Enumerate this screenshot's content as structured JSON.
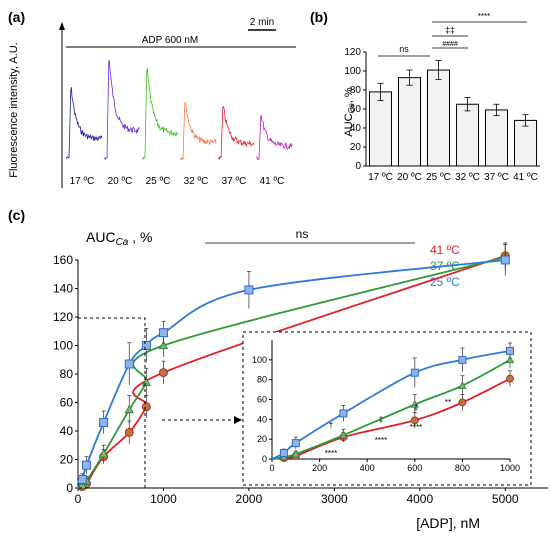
{
  "panels": {
    "a": {
      "label": "(a)",
      "treatment": "ADP 600 nM",
      "scale_bar": "2 min",
      "ylabel": "Fluorescence  intensity, A.U.",
      "traces": [
        {
          "temp": "17 ºC",
          "color": "#20209a",
          "peak": 0.62
        },
        {
          "temp": "20 ºC",
          "color": "#6a2ad8",
          "peak": 0.88
        },
        {
          "temp": "25 ºC",
          "color": "#42c01e",
          "peak": 0.8
        },
        {
          "temp": "32 ºC",
          "color": "#f47a52",
          "peak": 0.5
        },
        {
          "temp": "37 ºC",
          "color": "#e21e26",
          "peak": 0.46
        },
        {
          "temp": "41 ºC",
          "color": "#c020c0",
          "peak": 0.38
        }
      ]
    },
    "b": {
      "label": "(b)",
      "ylabel_main": "AUC",
      "ylabel_sub": "Ca",
      "ylabel_unit": ", %",
      "sig": {
        "ns": "ns",
        "double_dagger": "‡‡",
        "hash": "####",
        "stars": "****"
      }
    },
    "c": {
      "label": "(c)",
      "ylabel_main": "AUC",
      "ylabel_sub": "Ca",
      "ylabel_unit": " , %",
      "xlabel": "[ADP], nM",
      "ns": "ns",
      "legend": [
        {
          "name": "41 ºC",
          "color": "#e21e26"
        },
        {
          "name": "37 ºC",
          "color": "#2e9a3a"
        },
        {
          "name": "25 ºC",
          "color": "#2f7ad8"
        }
      ],
      "inset_marks": {
        "t1": "****",
        "t2": "****",
        "t3": "****",
        "t4": "**",
        "d1": "‡",
        "d2": "‡",
        "d3": "‡",
        "dag": "†"
      }
    }
  },
  "chart_data": [
    {
      "type": "bar",
      "categories": [
        "17 ºC",
        "20 ºC",
        "25 ºC",
        "32 ºC",
        "37 ºC",
        "41 ºC"
      ],
      "values": [
        78,
        93,
        101,
        65,
        59,
        48
      ],
      "errors": [
        9,
        8,
        10,
        7,
        6,
        6
      ],
      "ylim": [
        0,
        120
      ],
      "yticks": [
        0,
        20,
        40,
        60,
        80,
        100,
        120
      ]
    },
    {
      "type": "line",
      "xlim": [
        0,
        5500
      ],
      "ylim": [
        0,
        160
      ],
      "xticks": [
        0,
        1000,
        2000,
        3000,
        4000,
        5000
      ],
      "yticks": [
        0,
        20,
        40,
        60,
        80,
        100,
        120,
        140,
        160
      ],
      "series": [
        {
          "name": "41 ºC",
          "color": "#e21e26",
          "marker": "circle",
          "x": [
            50,
            100,
            300,
            600,
            800,
            1000,
            5000
          ],
          "y": [
            1,
            3,
            22,
            39,
            57,
            81,
            163
          ],
          "err": [
            2,
            3,
            5,
            8,
            8,
            8,
            9
          ]
        },
        {
          "name": "37 ºC",
          "color": "#2e9a3a",
          "marker": "triangle",
          "x": [
            50,
            100,
            300,
            600,
            800,
            1000,
            5000
          ],
          "y": [
            2,
            5,
            24,
            55,
            74,
            100,
            162
          ],
          "err": [
            2,
            3,
            6,
            10,
            10,
            8,
            9
          ]
        },
        {
          "name": "25 ºC",
          "color": "#2f7ad8",
          "marker": "square",
          "x": [
            50,
            100,
            300,
            600,
            800,
            1000,
            2000,
            5000
          ],
          "y": [
            6,
            16,
            46,
            87,
            100,
            109,
            139,
            160
          ],
          "err": [
            4,
            6,
            8,
            15,
            12,
            8,
            13,
            11
          ]
        }
      ]
    }
  ]
}
